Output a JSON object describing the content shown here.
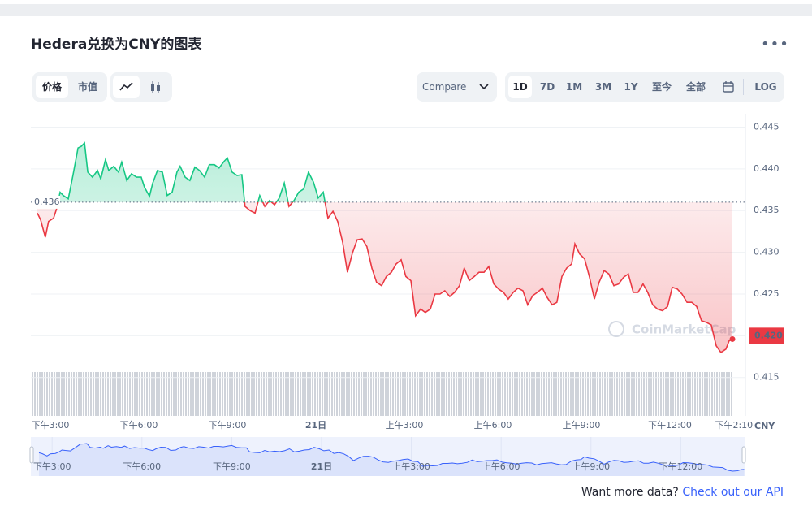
{
  "header": {
    "title": "Hedera兑换为CNY的图表"
  },
  "toolbar": {
    "metric_tabs": [
      "价格",
      "市值"
    ],
    "compare": "Compare",
    "ranges": [
      "1D",
      "7D",
      "1M",
      "3M",
      "1Y",
      "至今",
      "全部"
    ],
    "log": "LOG"
  },
  "chart_data": {
    "type": "line",
    "x": [
      -0.44,
      -0.33,
      -0.17,
      -0.06,
      0.11,
      0.22,
      0.33,
      0.44,
      0.61,
      0.77,
      0.94,
      1.05,
      1.16,
      1.27,
      1.43,
      1.6,
      1.71,
      1.87,
      1.98,
      2.15,
      2.31,
      2.42,
      2.59,
      2.75,
      2.92,
      3.08,
      3.19,
      3.36,
      3.47,
      3.63,
      3.8,
      3.96,
      4.13,
      4.29,
      4.4,
      4.57,
      4.73,
      4.9,
      5.06,
      5.23,
      5.39,
      5.56,
      5.72,
      5.89,
      6.0,
      6.16,
      6.33,
      6.49,
      6.6,
      6.77,
      6.94,
      7.1,
      7.27,
      7.43,
      7.6,
      7.76,
      7.93,
      8.09,
      8.26,
      8.42,
      8.59,
      8.75,
      8.92,
      9.08,
      9.25,
      9.41,
      9.58,
      9.74,
      9.91,
      10.07,
      10.24,
      10.4,
      10.57,
      10.73,
      10.9,
      11.06,
      11.23,
      11.39,
      11.56,
      11.72,
      11.89,
      12.05,
      12.22,
      12.38,
      12.55,
      12.71,
      12.88,
      13.04,
      13.21,
      13.37,
      13.54,
      13.7,
      13.87,
      14.03,
      14.2,
      14.37,
      14.53,
      14.7,
      14.86,
      15.03,
      15.19,
      15.36,
      15.52,
      15.69,
      15.85,
      16.02,
      16.18,
      16.35,
      16.51,
      16.68,
      16.84,
      17.01,
      17.17,
      17.34,
      17.5,
      17.67,
      17.78,
      17.94,
      18.11,
      18.27,
      18.44,
      18.6,
      18.77,
      18.93,
      19.1,
      19.26,
      19.43,
      19.59,
      19.76,
      19.92,
      20.09,
      20.25,
      20.42,
      20.58,
      20.75,
      20.92,
      21.08,
      21.25,
      21.41,
      21.58,
      21.74,
      21.91,
      22.07,
      22.24,
      22.4,
      22.57,
      22.73,
      22.9,
      23.01,
      23.12
    ],
    "values": [
      0.4347,
      0.4339,
      0.4318,
      0.4337,
      0.4341,
      0.4353,
      0.4372,
      0.4368,
      0.4364,
      0.4393,
      0.4425,
      0.4427,
      0.4431,
      0.4396,
      0.439,
      0.4398,
      0.4388,
      0.4411,
      0.4398,
      0.4403,
      0.4396,
      0.4408,
      0.4386,
      0.4394,
      0.439,
      0.439,
      0.4378,
      0.4367,
      0.4383,
      0.4398,
      0.4396,
      0.4368,
      0.4372,
      0.4396,
      0.4403,
      0.439,
      0.4386,
      0.4402,
      0.4398,
      0.439,
      0.4405,
      0.4405,
      0.4401,
      0.4409,
      0.4413,
      0.4396,
      0.4392,
      0.4393,
      0.4355,
      0.435,
      0.4347,
      0.4368,
      0.4355,
      0.4362,
      0.4357,
      0.4365,
      0.4383,
      0.4355,
      0.4362,
      0.4372,
      0.4376,
      0.4396,
      0.4384,
      0.4365,
      0.4372,
      0.4341,
      0.4349,
      0.4337,
      0.4312,
      0.4276,
      0.4299,
      0.4315,
      0.4316,
      0.4307,
      0.4281,
      0.4264,
      0.426,
      0.4271,
      0.4276,
      0.4286,
      0.4291,
      0.4271,
      0.4266,
      0.4224,
      0.4232,
      0.4228,
      0.4232,
      0.425,
      0.425,
      0.4254,
      0.4247,
      0.4252,
      0.426,
      0.4281,
      0.4266,
      0.4271,
      0.4276,
      0.4276,
      0.4283,
      0.4262,
      0.4256,
      0.4252,
      0.4244,
      0.4252,
      0.4257,
      0.4254,
      0.4237,
      0.4248,
      0.4252,
      0.4257,
      0.4246,
      0.4237,
      0.424,
      0.4271,
      0.4281,
      0.4286,
      0.431,
      0.4298,
      0.4292,
      0.4271,
      0.4244,
      0.4264,
      0.4278,
      0.4274,
      0.426,
      0.4262,
      0.427,
      0.4274,
      0.4252,
      0.4252,
      0.4262,
      0.4252,
      0.4237,
      0.4232,
      0.423,
      0.4235,
      0.4258,
      0.4256,
      0.425,
      0.424,
      0.424,
      0.4235,
      0.4218,
      0.4216,
      0.4213,
      0.4188,
      0.418,
      0.4184,
      0.4194,
      0.4196
    ],
    "up_color": "#16c784",
    "down_color": "#ea3943",
    "baseline": 0.436,
    "current_price": {
      "value": 0.42,
      "label": "0.420"
    },
    "xlim": [
      -0.66,
      23.56
    ],
    "xticks": [
      {
        "value": 0,
        "label": "下午3:00"
      },
      {
        "value": 3,
        "label": "下午6:00"
      },
      {
        "value": 6,
        "label": "下午9:00"
      },
      {
        "value": 9,
        "label": "21日"
      },
      {
        "value": 12,
        "label": "上午3:00"
      },
      {
        "value": 15,
        "label": "上午6:00"
      },
      {
        "value": 18,
        "label": "上午9:00"
      },
      {
        "value": 21,
        "label": "下午12:00"
      },
      {
        "value": 23.17,
        "label": "下午2:10"
      }
    ],
    "ylim": [
      0.4104,
      0.4466
    ],
    "yticks": [
      0.415,
      {
        "value": 0.42,
        "label": "0.420"
      },
      0.425,
      {
        "value": 0.43,
        "label": "0.430"
      },
      0.435,
      {
        "value": 0.44,
        "label": "0.440"
      },
      0.445
    ],
    "y_unit_label": "CNY",
    "grid": true,
    "watermark": "CoinMarketCap",
    "navigator": {
      "xlim": [
        -0.71,
        23.16
      ],
      "ylim": [
        0.4136,
        0.449
      ],
      "color": "#3861fb"
    }
  },
  "footer": {
    "prompt": "Want more data?",
    "link": "Check out our API"
  }
}
